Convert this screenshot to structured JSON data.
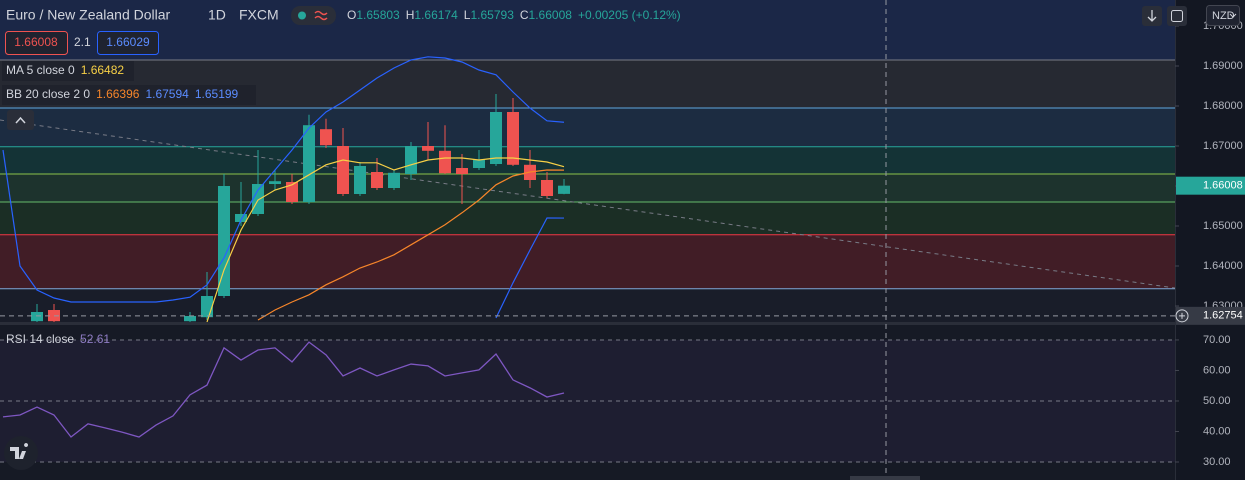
{
  "header": {
    "symbol": "Euro / New Zealand Dollar",
    "interval": "1D",
    "exchange": "FXCM",
    "ohlc_labels": [
      "O",
      "H",
      "L",
      "C"
    ],
    "change": "+0.00205 (+0.12%)",
    "spread": 2.1,
    "ask": 1.66029,
    "currency": "NZD",
    "crosshair_price": 1.62754
  },
  "chart_data": [
    {
      "type": "candlestick",
      "categories": [
        null,
        null,
        null,
        null,
        null,
        null,
        null,
        null,
        null,
        null,
        null,
        null,
        null,
        null,
        null,
        null,
        null,
        null,
        null,
        null,
        null,
        null,
        null,
        null,
        null,
        null,
        null,
        null,
        null,
        null,
        null,
        null,
        null,
        null
      ],
      "open": [
        null,
        null,
        1.6262,
        1.629,
        null,
        null,
        null,
        null,
        null,
        null,
        null,
        1.6262,
        1.6272,
        1.6325,
        1.651,
        1.653,
        1.6605,
        1.661,
        1.656,
        1.6742,
        1.67,
        1.658,
        1.6635,
        1.6595,
        1.663,
        1.67,
        1.6688,
        1.6645,
        1.6645,
        1.6655,
        1.6785,
        1.6653,
        1.6615,
        1.65803
      ],
      "high": [
        null,
        null,
        1.6305,
        1.6305,
        null,
        null,
        null,
        null,
        null,
        null,
        null,
        1.6285,
        1.6385,
        1.663,
        1.661,
        1.669,
        1.664,
        1.663,
        1.6778,
        1.6768,
        1.6745,
        1.666,
        1.667,
        1.664,
        1.671,
        1.676,
        1.6752,
        1.668,
        1.669,
        1.683,
        1.682,
        1.669,
        1.6635,
        1.66174
      ],
      "low": [
        null,
        null,
        1.6255,
        1.6255,
        null,
        null,
        null,
        null,
        null,
        null,
        null,
        1.6255,
        1.6265,
        1.632,
        1.65,
        1.6525,
        1.659,
        1.6555,
        1.6555,
        1.6695,
        1.6575,
        1.6575,
        1.659,
        1.659,
        1.6615,
        1.6665,
        1.663,
        1.6555,
        1.664,
        1.665,
        1.665,
        1.6595,
        1.657,
        1.65793
      ],
      "close": [
        null,
        null,
        1.6285,
        1.6262,
        null,
        null,
        null,
        null,
        null,
        null,
        null,
        1.6275,
        1.6325,
        1.66,
        1.653,
        1.6605,
        1.6612,
        1.656,
        1.6752,
        1.6702,
        1.658,
        1.665,
        1.6595,
        1.6633,
        1.67,
        1.6688,
        1.6632,
        1.663,
        1.6665,
        1.6785,
        1.6653,
        1.6615,
        1.6575,
        1.66008
      ],
      "up_color": "#26a69a",
      "down_color": "#ef5350",
      "lines": [
        {
          "name": "MA 5 close 0",
          "color": "#f7d046",
          "values": [
            null,
            null,
            null,
            null,
            null,
            null,
            null,
            null,
            null,
            null,
            null,
            null,
            1.626,
            1.639,
            1.649,
            1.6565,
            1.659,
            1.6603,
            1.6628,
            1.6653,
            1.6665,
            1.6658,
            1.6658,
            1.664,
            1.6653,
            1.6665,
            1.667,
            1.667,
            1.6665,
            1.667,
            1.667,
            1.6665,
            1.666,
            1.66482
          ]
        },
        {
          "name": "BB 20 close 2 0",
          "color": "#f7862a",
          "values": [
            null,
            null,
            null,
            null,
            null,
            null,
            null,
            null,
            null,
            null,
            null,
            null,
            null,
            null,
            null,
            1.6265,
            1.629,
            1.631,
            1.6328,
            1.6353,
            1.6373,
            1.6395,
            1.641,
            1.6428,
            1.6453,
            1.6478,
            1.6503,
            1.6533,
            1.6565,
            1.6603,
            1.6625,
            1.6635,
            1.664,
            1.66396
          ]
        },
        {
          "color": "#2962ff",
          "values": [
            1.669,
            1.64,
            1.634,
            1.632,
            1.631,
            1.631,
            1.631,
            1.631,
            1.631,
            1.631,
            1.6315,
            1.6322,
            1.6353,
            1.642,
            1.6515,
            1.659,
            1.664,
            1.669,
            1.6745,
            1.6785,
            1.681,
            1.684,
            1.687,
            1.6895,
            1.6915,
            1.6923,
            1.692,
            1.691,
            1.689,
            1.6878,
            1.6835,
            1.6795,
            1.6763,
            1.67594
          ]
        },
        {
          "color": "#2962ff",
          "values": [
            null,
            null,
            null,
            null,
            null,
            null,
            null,
            null,
            null,
            null,
            null,
            null,
            null,
            null,
            null,
            null,
            null,
            null,
            null,
            null,
            null,
            null,
            null,
            null,
            null,
            null,
            null,
            null,
            null,
            1.627,
            1.6358,
            1.644,
            1.652,
            1.65199
          ]
        }
      ],
      "levels": [
        1.6915,
        1.6795,
        1.6698,
        1.663,
        1.656,
        1.6478,
        1.6343
      ],
      "level_colors": [
        "#787b86",
        "#5fa8e0",
        "#26a69a",
        "#8bc34a",
        "#66bb6a",
        "#f23645",
        "#7ea8d8"
      ],
      "zone_colors": [
        "#1d2a4d",
        "#2a2d35",
        "#1e3046",
        "#153839",
        "#20382f",
        "#1d3326",
        "#4a1f27",
        "#1b1f2a"
      ],
      "ylim": [
        1.626,
        1.7065
      ],
      "yticks": [
        {
          "value": 1.63,
          "label": "1.63000"
        },
        {
          "value": 1.64,
          "label": "1.64000"
        },
        {
          "value": 1.65,
          "label": "1.65000"
        },
        {
          "value": 1.66,
          "label": "1.66000"
        },
        {
          "value": 1.67,
          "label": "1.67000"
        },
        {
          "value": 1.68,
          "label": "1.68000"
        },
        {
          "value": 1.69,
          "label": "1.69000"
        },
        {
          "value": 1.7,
          "label": "1.70000"
        }
      ]
    },
    {
      "type": "line",
      "categories": [
        null,
        null,
        null,
        null,
        null,
        null,
        null,
        null,
        null,
        null,
        null,
        null,
        null,
        null,
        null,
        null,
        null,
        null,
        null,
        null,
        null,
        null,
        null,
        null,
        null,
        null,
        null,
        null,
        null,
        null,
        null,
        null,
        null,
        null
      ],
      "series": [
        {
          "name": "RSI 14 close",
          "color": "#7e57c2",
          "values": [
            44.8,
            45.4,
            48,
            45.4,
            38.2,
            42.5,
            41.2,
            39.8,
            38.2,
            42.1,
            45.1,
            52,
            55.2,
            67.4,
            63.4,
            66.7,
            67.4,
            62.8,
            69.3,
            65.1,
            58.2,
            60.8,
            58.2,
            60.2,
            62.1,
            61.5,
            58.2,
            59.2,
            60.2,
            65.4,
            56.9,
            54.3,
            51.3,
            52.61
          ]
        }
      ],
      "reference_lines": [
        70,
        50,
        30
      ],
      "ylim": [
        24.1,
        74.9
      ],
      "yticks": [
        {
          "value": 30,
          "label": "30.00"
        },
        {
          "value": 40,
          "label": "40.00"
        },
        {
          "value": 50,
          "label": "50.00"
        },
        {
          "value": 60,
          "label": "60.00"
        },
        {
          "value": 70,
          "label": "70.00"
        }
      ]
    }
  ]
}
